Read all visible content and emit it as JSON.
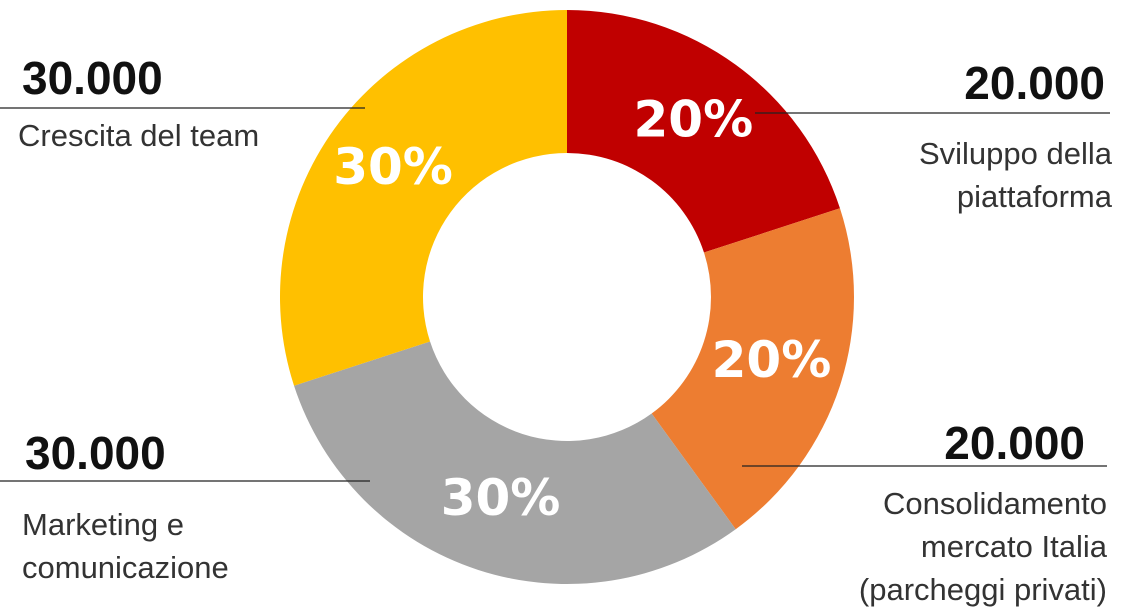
{
  "chart_data": {
    "type": "pie",
    "donut": true,
    "categories": [
      "Sviluppo della piattaforma",
      "Consolidamento mercato Italia (parcheggi privati)",
      "Marketing e comunicazione",
      "Crescita del team"
    ],
    "values": [
      20,
      20,
      30,
      30
    ],
    "value_labels": [
      "20%",
      "20%",
      "30%",
      "30%"
    ],
    "amount_labels": [
      "20.000",
      "20.000",
      "30.000",
      "30.000"
    ],
    "colors": [
      "#c00000",
      "#ed7d31",
      "#a5a5a5",
      "#ffc000"
    ]
  }
}
